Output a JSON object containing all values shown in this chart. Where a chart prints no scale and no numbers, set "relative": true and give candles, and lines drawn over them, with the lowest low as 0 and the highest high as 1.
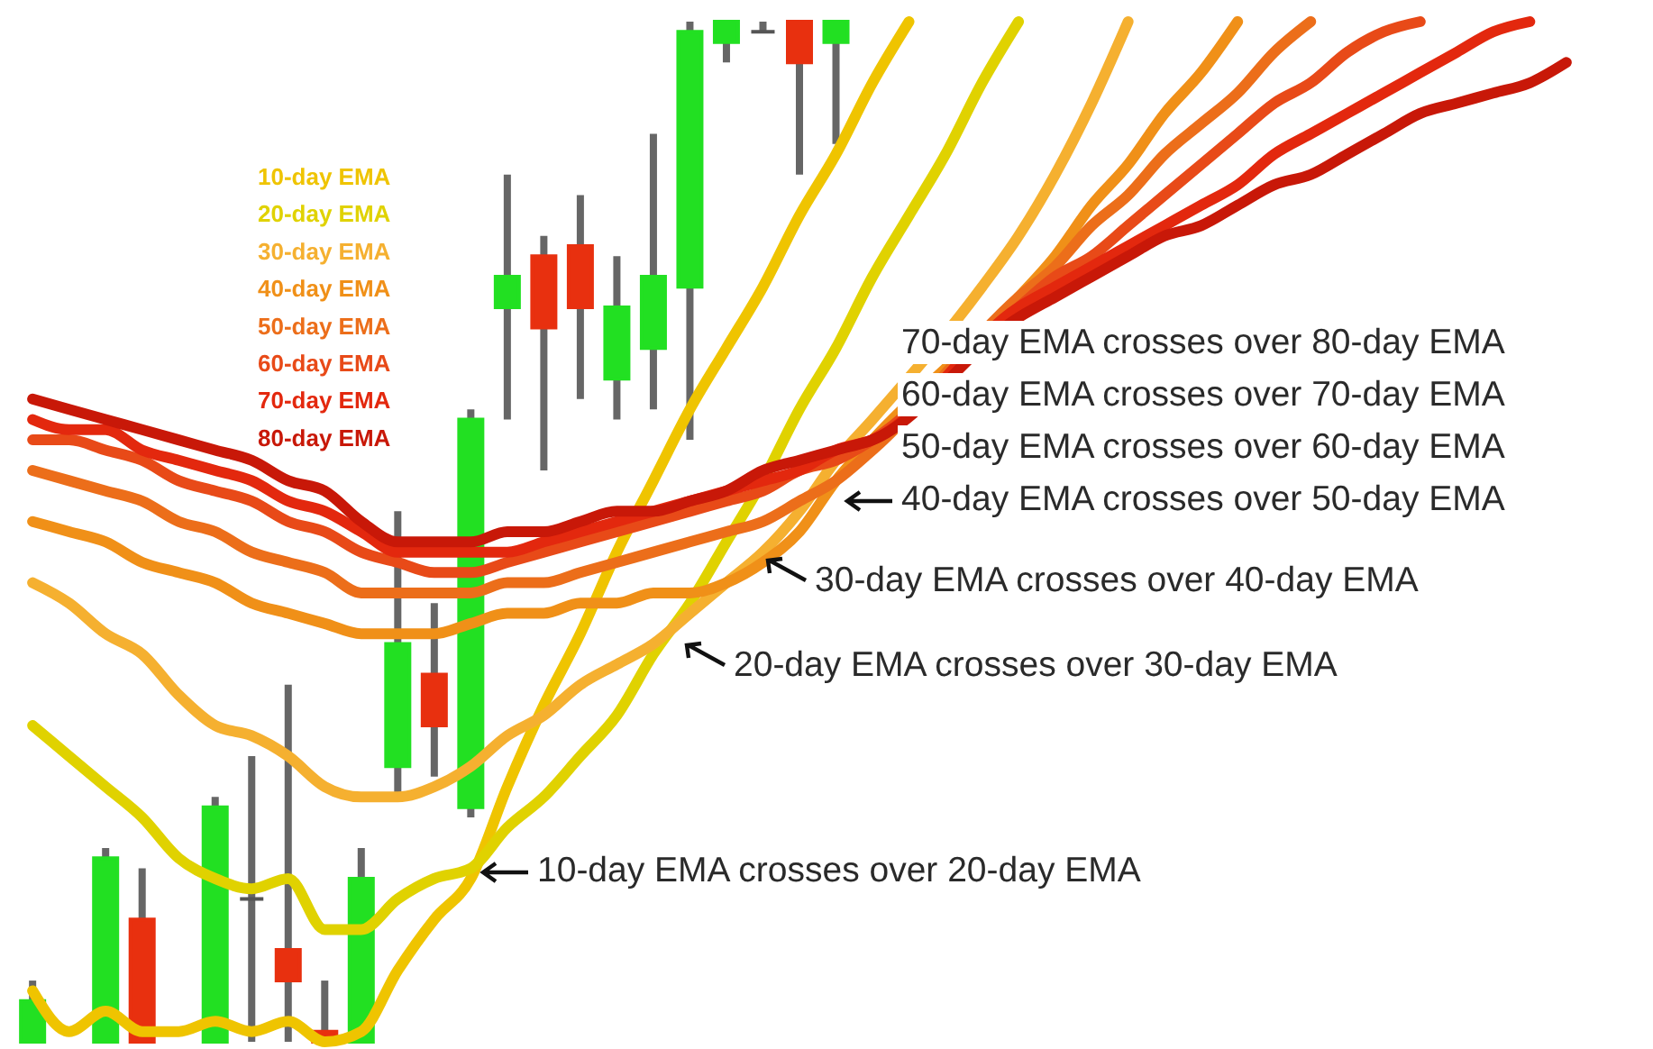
{
  "chart_data": {
    "type": "candlestick",
    "relative": true,
    "tick_labels": false,
    "legend": "top left",
    "categories": [
      null,
      null,
      null,
      null,
      null,
      null,
      null,
      null,
      null,
      null,
      null,
      null,
      null,
      null,
      null,
      null,
      null,
      null,
      null,
      null,
      null,
      null,
      null,
      null,
      null,
      null,
      null,
      null,
      null,
      null,
      null,
      null,
      null,
      null,
      null,
      null,
      null,
      null,
      null,
      null,
      null,
      null,
      null
    ],
    "ohlc": [
      [
        0,
        0.06,
        0,
        0.04
      ],
      null,
      [
        0,
        0.19,
        0,
        0.18
      ],
      [
        0.12,
        0.17,
        0,
        0
      ],
      null,
      [
        0,
        0.24,
        0,
        0.23
      ],
      [
        0.14,
        0.28,
        0,
        0.14
      ],
      [
        0.09,
        0.35,
        0,
        0.06
      ],
      [
        0.01,
        0.06,
        0,
        0
      ],
      [
        0,
        0.19,
        0,
        0.16
      ],
      [
        0.27,
        0.52,
        0.24,
        0.39
      ],
      [
        0.36,
        0.43,
        0.26,
        0.31
      ],
      [
        0.23,
        0.62,
        0.22,
        0.61
      ],
      [
        0.72,
        0.85,
        0.61,
        0.75
      ],
      [
        0.77,
        0.79,
        0.56,
        0.7
      ],
      [
        0.78,
        0.83,
        0.63,
        0.72
      ],
      [
        0.65,
        0.77,
        0.61,
        0.72
      ],
      [
        0.68,
        0.89,
        0.62,
        0.75
      ],
      [
        0.74,
        1,
        0.59,
        0.99
      ],
      [
        0.98,
        1,
        0.96,
        1
      ],
      [
        0.99,
        1,
        0.99,
        0.99
      ],
      [
        1,
        1,
        0.85,
        0.96
      ],
      [
        0.98,
        1,
        0.88,
        1
      ],
      null,
      null,
      null,
      null,
      null,
      null,
      null,
      null,
      null,
      null,
      null,
      null,
      null,
      null,
      null,
      null,
      null,
      null,
      null,
      null
    ],
    "colors": [
      "#22e022",
      null,
      "#22e022",
      "#e8300f",
      null,
      "#22e022",
      "#555555",
      "#e8300f",
      "#e8300f",
      "#22e022",
      "#22e022",
      "#e8300f",
      "#22e022",
      "#22e022",
      "#e8300f",
      "#e8300f",
      "#22e022",
      "#22e022",
      "#22e022",
      "#22e022",
      "#555555",
      "#e8300f",
      "#22e022",
      null,
      null,
      null,
      null,
      null,
      null,
      null,
      null,
      null,
      null,
      null,
      null,
      null,
      null,
      null,
      null,
      null,
      null,
      null,
      null
    ],
    "series": [
      {
        "type": "line",
        "name": "10-day EMA",
        "color": "#efc400",
        "values": [
          0.05,
          0.01,
          0.03,
          0.01,
          0.01,
          0.02,
          0.01,
          0.02,
          0,
          0.01,
          0.07,
          0.12,
          0.16,
          0.25,
          0.33,
          0.4,
          0.48,
          0.55,
          0.62,
          0.68,
          0.74,
          0.81,
          0.87,
          0.94,
          1,
          null,
          null,
          null,
          null,
          null,
          null,
          null,
          null,
          null,
          null,
          null,
          null,
          null,
          null,
          null,
          null,
          null,
          null
        ]
      },
      {
        "type": "line",
        "name": "20-day EMA",
        "color": "#e0d200",
        "values": [
          0.31,
          0.28,
          0.25,
          0.22,
          0.18,
          0.16,
          0.15,
          0.16,
          0.11,
          0.11,
          0.14,
          0.16,
          0.17,
          0.21,
          0.24,
          0.28,
          0.32,
          0.38,
          0.43,
          0.49,
          0.55,
          0.62,
          0.68,
          0.75,
          0.81,
          0.87,
          0.94,
          1,
          null,
          null,
          null,
          null,
          null,
          null,
          null,
          null,
          null,
          null,
          null,
          null,
          null,
          null,
          null
        ]
      },
      {
        "type": "line",
        "name": "30-day EMA",
        "color": "#f5b030",
        "values": [
          0.45,
          0.43,
          0.4,
          0.38,
          0.34,
          0.31,
          0.3,
          0.28,
          0.25,
          0.24,
          0.24,
          0.25,
          0.27,
          0.3,
          0.32,
          0.35,
          0.37,
          0.39,
          0.42,
          0.45,
          0.48,
          0.52,
          0.57,
          0.61,
          null,
          null,
          0.74,
          0.79,
          0.85,
          0.92,
          1,
          null,
          null,
          null,
          null,
          null,
          null,
          null,
          null,
          null,
          null,
          null,
          null
        ]
      },
      {
        "type": "line",
        "name": "40-day EMA",
        "color": "#f09018",
        "values": [
          0.51,
          0.5,
          0.49,
          0.47,
          0.46,
          0.45,
          0.43,
          0.42,
          0.41,
          0.4,
          0.4,
          0.4,
          0.41,
          0.42,
          0.42,
          0.43,
          0.43,
          0.44,
          0.44,
          0.45,
          0.47,
          0.5,
          0.55,
          0.59,
          null,
          null,
          null,
          0.73,
          0.77,
          0.82,
          0.86,
          0.91,
          0.95,
          1,
          null,
          null,
          null,
          null,
          null,
          null,
          null,
          null,
          null
        ]
      },
      {
        "type": "line",
        "name": "50-day EMA",
        "color": "#ec6e1a",
        "values": [
          0.56,
          0.55,
          0.54,
          0.53,
          0.51,
          0.5,
          0.48,
          0.47,
          0.46,
          0.44,
          0.44,
          0.44,
          0.44,
          0.45,
          0.45,
          0.46,
          0.47,
          0.48,
          0.49,
          0.5,
          0.51,
          0.53,
          0.55,
          0.58,
          null,
          null,
          null,
          0.73,
          0.76,
          0.8,
          0.83,
          0.87,
          0.9,
          0.93,
          0.97,
          1,
          null,
          null,
          null,
          null,
          null,
          null,
          null
        ]
      },
      {
        "type": "line",
        "name": "60-day EMA",
        "color": "#e84a18",
        "values": [
          0.59,
          0.59,
          0.58,
          0.57,
          0.55,
          0.54,
          0.53,
          0.51,
          0.5,
          0.48,
          0.47,
          0.46,
          0.46,
          0.47,
          0.48,
          0.49,
          0.5,
          0.51,
          0.52,
          0.53,
          0.54,
          0.56,
          0.57,
          0.59,
          null,
          null,
          null,
          0.72,
          0.75,
          0.77,
          0.8,
          0.83,
          0.86,
          0.89,
          0.92,
          0.94,
          0.97,
          0.99,
          1,
          null,
          null,
          null,
          null
        ]
      },
      {
        "type": "line",
        "name": "70-day EMA",
        "color": "#e3280e",
        "values": [
          0.61,
          0.6,
          0.6,
          0.58,
          0.57,
          0.56,
          0.55,
          0.53,
          0.52,
          0.5,
          0.48,
          0.48,
          0.48,
          0.48,
          0.49,
          0.5,
          0.51,
          0.52,
          0.53,
          0.54,
          0.55,
          0.56,
          0.58,
          0.59,
          null,
          null,
          null,
          0.72,
          0.74,
          0.76,
          0.78,
          0.8,
          0.82,
          0.84,
          0.87,
          0.89,
          0.91,
          0.93,
          0.95,
          0.97,
          0.99,
          1,
          null
        ]
      },
      {
        "type": "line",
        "name": "80-day EMA",
        "color": "#c81808",
        "values": [
          0.63,
          0.62,
          0.61,
          0.6,
          0.59,
          0.58,
          0.57,
          0.55,
          0.54,
          0.51,
          0.49,
          0.49,
          0.49,
          0.5,
          0.5,
          0.51,
          0.52,
          0.52,
          0.53,
          0.54,
          0.56,
          0.57,
          0.58,
          0.59,
          null,
          null,
          null,
          0.71,
          0.73,
          0.75,
          0.77,
          0.79,
          0.8,
          0.82,
          0.84,
          0.85,
          0.87,
          0.89,
          0.91,
          0.92,
          0.93,
          0.94,
          0.96
        ]
      }
    ],
    "annotations": [
      "70-day EMA crosses over 80-day EMA",
      "60-day EMA crosses over 70-day EMA",
      "50-day EMA crosses over 60-day EMA",
      "40-day EMA crosses over 50-day EMA",
      "30-day EMA crosses over 40-day EMA",
      "20-day EMA crosses over 30-day EMA",
      "10-day EMA crosses over 20-day EMA"
    ]
  }
}
